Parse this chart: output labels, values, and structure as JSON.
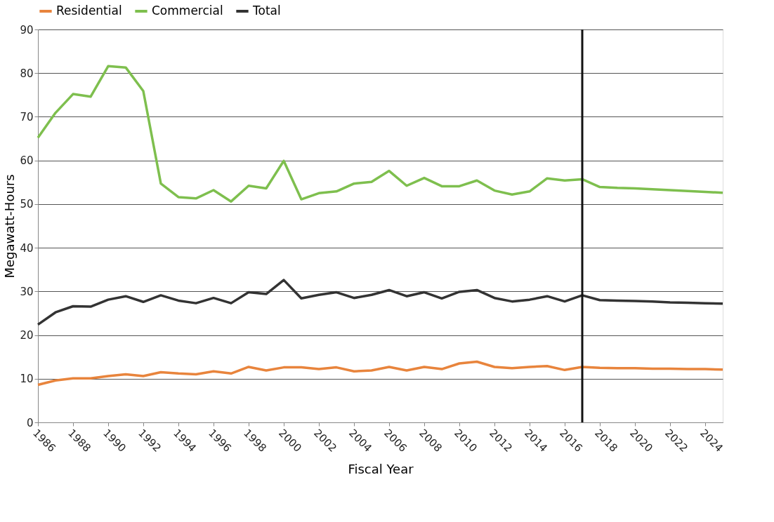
{
  "chart_data": {
    "type": "line",
    "xlabel": "Fiscal Year",
    "ylabel": "Megawatt-Hours",
    "x": [
      1986,
      1987,
      1988,
      1989,
      1990,
      1991,
      1992,
      1993,
      1994,
      1995,
      1996,
      1997,
      1998,
      1999,
      2000,
      2001,
      2002,
      2003,
      2004,
      2005,
      2006,
      2007,
      2008,
      2009,
      2010,
      2011,
      2012,
      2013,
      2014,
      2015,
      2016,
      2017,
      2018,
      2019,
      2020,
      2021,
      2022,
      2023,
      2024,
      2025
    ],
    "series": [
      {
        "name": "Residential",
        "color": "#e8843c",
        "values": [
          8.6,
          9.6,
          10.1,
          10.1,
          10.6,
          11.0,
          10.6,
          11.5,
          11.2,
          11.0,
          11.7,
          11.2,
          12.7,
          11.9,
          12.6,
          12.6,
          12.2,
          12.6,
          11.7,
          11.9,
          12.7,
          11.9,
          12.7,
          12.2,
          13.5,
          13.9,
          12.7,
          12.4,
          12.7,
          12.9,
          12.0,
          12.7,
          12.5,
          12.4,
          12.4,
          12.3,
          12.3,
          12.2,
          12.2,
          12.1
        ]
      },
      {
        "name": "Commercial",
        "color": "#7ebf4e",
        "values": [
          65.2,
          70.9,
          75.2,
          74.6,
          81.6,
          81.3,
          75.9,
          54.7,
          51.6,
          51.3,
          53.2,
          50.6,
          54.2,
          53.6,
          59.9,
          51.1,
          52.5,
          52.9,
          54.7,
          55.1,
          57.6,
          54.2,
          56.0,
          54.1,
          54.1,
          55.4,
          53.1,
          52.2,
          52.9,
          55.9,
          55.4,
          55.7,
          53.9,
          53.7,
          53.6,
          53.4,
          53.2,
          53.0,
          52.8,
          52.6
        ]
      },
      {
        "name": "Total",
        "color": "#333333",
        "values": [
          22.4,
          25.2,
          26.6,
          26.5,
          28.1,
          28.9,
          27.6,
          29.1,
          27.9,
          27.3,
          28.5,
          27.3,
          29.8,
          29.4,
          32.6,
          28.4,
          29.2,
          29.8,
          28.5,
          29.2,
          30.3,
          28.9,
          29.8,
          28.4,
          29.9,
          30.3,
          28.5,
          27.7,
          28.1,
          28.9,
          27.7,
          29.1,
          28.0,
          27.9,
          27.8,
          27.7,
          27.5,
          27.4,
          27.3,
          27.2
        ]
      }
    ],
    "xlim": [
      1986,
      2025
    ],
    "xticks": [
      1986,
      1988,
      1990,
      1992,
      1994,
      1996,
      1998,
      2000,
      2002,
      2004,
      2006,
      2008,
      2010,
      2012,
      2014,
      2016,
      2018,
      2020,
      2022,
      2024
    ],
    "ylim": [
      0,
      90
    ],
    "yticks": [
      0,
      10,
      20,
      30,
      40,
      50,
      60,
      70,
      80,
      90
    ],
    "ref_lines": [
      {
        "axis": "x",
        "value": 2017,
        "color": "#111111",
        "line_style": "solid"
      }
    ],
    "grid": "y",
    "legend": "top",
    "marker": "none",
    "line_style": "solid"
  }
}
